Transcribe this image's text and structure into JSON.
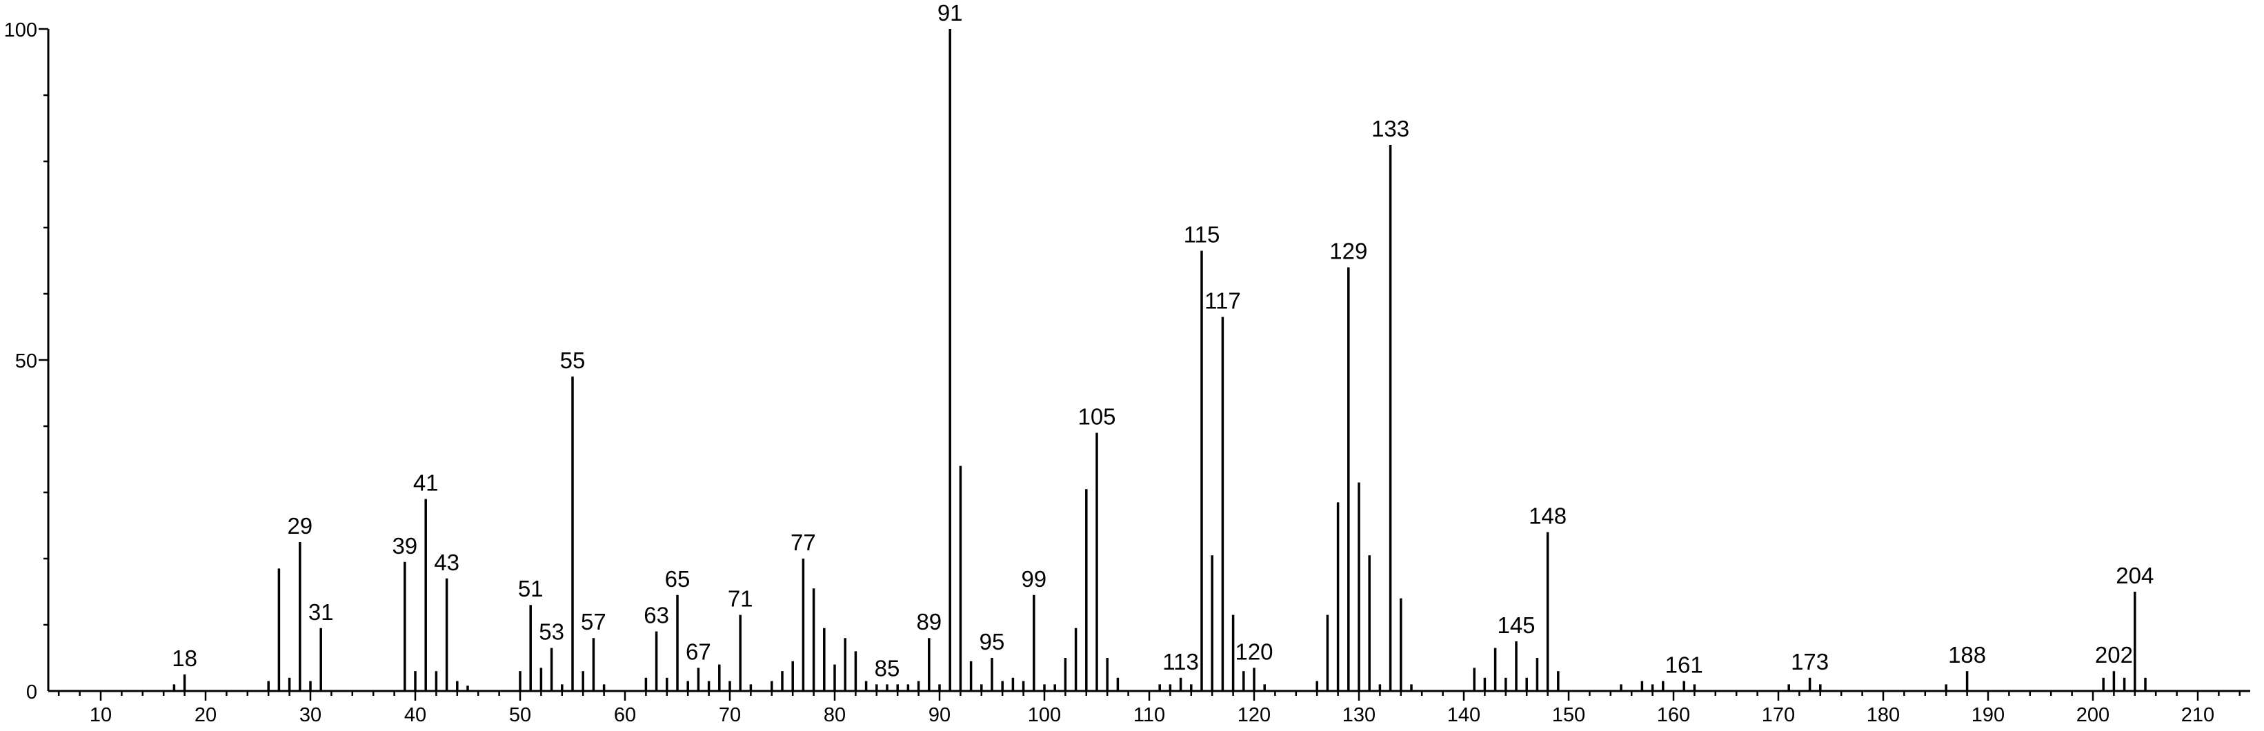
{
  "chart_data": {
    "type": "bar",
    "title": "",
    "xlabel": "",
    "ylabel": "",
    "xlim": [
      5,
      215
    ],
    "ylim": [
      0,
      100
    ],
    "grid": false,
    "x_ticks": [
      10,
      20,
      30,
      40,
      50,
      60,
      70,
      80,
      90,
      100,
      110,
      120,
      130,
      140,
      150,
      160,
      170,
      180,
      190,
      200,
      210
    ],
    "y_ticks": [
      0,
      50,
      100
    ],
    "peaks": [
      {
        "x": 17,
        "y": 1
      },
      {
        "x": 18,
        "y": 2.5,
        "label": "18"
      },
      {
        "x": 26,
        "y": 1.5
      },
      {
        "x": 27,
        "y": 18.5
      },
      {
        "x": 28,
        "y": 2
      },
      {
        "x": 29,
        "y": 22.5,
        "label": "29"
      },
      {
        "x": 30,
        "y": 1.5
      },
      {
        "x": 31,
        "y": 9.5,
        "label": "31"
      },
      {
        "x": 39,
        "y": 19.5,
        "label": "39"
      },
      {
        "x": 40,
        "y": 3
      },
      {
        "x": 41,
        "y": 29,
        "label": "41"
      },
      {
        "x": 42,
        "y": 3
      },
      {
        "x": 43,
        "y": 17,
        "label": "43"
      },
      {
        "x": 44,
        "y": 1.5
      },
      {
        "x": 45,
        "y": 0.8
      },
      {
        "x": 50,
        "y": 3
      },
      {
        "x": 51,
        "y": 13,
        "label": "51"
      },
      {
        "x": 52,
        "y": 3.5
      },
      {
        "x": 53,
        "y": 6.5,
        "label": "53"
      },
      {
        "x": 54,
        "y": 1
      },
      {
        "x": 55,
        "y": 47.5,
        "label": "55"
      },
      {
        "x": 56,
        "y": 3
      },
      {
        "x": 57,
        "y": 8,
        "label": "57"
      },
      {
        "x": 58,
        "y": 1
      },
      {
        "x": 62,
        "y": 2
      },
      {
        "x": 63,
        "y": 9,
        "label": "63"
      },
      {
        "x": 64,
        "y": 2
      },
      {
        "x": 65,
        "y": 14.5,
        "label": "65"
      },
      {
        "x": 66,
        "y": 1.5
      },
      {
        "x": 67,
        "y": 3.5,
        "label": "67"
      },
      {
        "x": 68,
        "y": 1.5
      },
      {
        "x": 69,
        "y": 4
      },
      {
        "x": 70,
        "y": 1.5
      },
      {
        "x": 71,
        "y": 11.5,
        "label": "71"
      },
      {
        "x": 72,
        "y": 1
      },
      {
        "x": 74,
        "y": 1.5
      },
      {
        "x": 75,
        "y": 3
      },
      {
        "x": 76,
        "y": 4.5
      },
      {
        "x": 77,
        "y": 20,
        "label": "77"
      },
      {
        "x": 78,
        "y": 15.5
      },
      {
        "x": 79,
        "y": 9.5
      },
      {
        "x": 80,
        "y": 4
      },
      {
        "x": 81,
        "y": 8
      },
      {
        "x": 82,
        "y": 6
      },
      {
        "x": 83,
        "y": 1.5
      },
      {
        "x": 84,
        "y": 1
      },
      {
        "x": 85,
        "y": 1,
        "label": "85"
      },
      {
        "x": 86,
        "y": 1
      },
      {
        "x": 87,
        "y": 1
      },
      {
        "x": 88,
        "y": 1.5
      },
      {
        "x": 89,
        "y": 8,
        "label": "89"
      },
      {
        "x": 90,
        "y": 1
      },
      {
        "x": 91,
        "y": 100,
        "label": "91"
      },
      {
        "x": 92,
        "y": 34
      },
      {
        "x": 93,
        "y": 4.5
      },
      {
        "x": 94,
        "y": 1
      },
      {
        "x": 95,
        "y": 5,
        "label": "95"
      },
      {
        "x": 96,
        "y": 1.5
      },
      {
        "x": 97,
        "y": 2
      },
      {
        "x": 98,
        "y": 1.5
      },
      {
        "x": 99,
        "y": 14.5,
        "label": "99"
      },
      {
        "x": 100,
        "y": 1
      },
      {
        "x": 101,
        "y": 1
      },
      {
        "x": 102,
        "y": 5
      },
      {
        "x": 103,
        "y": 9.5
      },
      {
        "x": 104,
        "y": 30.5
      },
      {
        "x": 105,
        "y": 39,
        "label": "105"
      },
      {
        "x": 106,
        "y": 5
      },
      {
        "x": 107,
        "y": 2
      },
      {
        "x": 111,
        "y": 1
      },
      {
        "x": 112,
        "y": 1
      },
      {
        "x": 113,
        "y": 2,
        "label": "113"
      },
      {
        "x": 114,
        "y": 1
      },
      {
        "x": 115,
        "y": 66.5,
        "label": "115"
      },
      {
        "x": 116,
        "y": 20.5
      },
      {
        "x": 117,
        "y": 56.5,
        "label": "117"
      },
      {
        "x": 118,
        "y": 11.5
      },
      {
        "x": 119,
        "y": 3
      },
      {
        "x": 120,
        "y": 3.5,
        "label": "120"
      },
      {
        "x": 121,
        "y": 1
      },
      {
        "x": 126,
        "y": 1.5
      },
      {
        "x": 127,
        "y": 11.5
      },
      {
        "x": 128,
        "y": 28.5
      },
      {
        "x": 129,
        "y": 64,
        "label": "129"
      },
      {
        "x": 130,
        "y": 31.5
      },
      {
        "x": 131,
        "y": 20.5
      },
      {
        "x": 132,
        "y": 1
      },
      {
        "x": 133,
        "y": 82.5,
        "label": "133"
      },
      {
        "x": 134,
        "y": 14
      },
      {
        "x": 135,
        "y": 1
      },
      {
        "x": 141,
        "y": 3.5
      },
      {
        "x": 142,
        "y": 2
      },
      {
        "x": 143,
        "y": 6.5
      },
      {
        "x": 144,
        "y": 2
      },
      {
        "x": 145,
        "y": 7.5,
        "label": "145"
      },
      {
        "x": 146,
        "y": 2
      },
      {
        "x": 147,
        "y": 5
      },
      {
        "x": 148,
        "y": 24,
        "label": "148"
      },
      {
        "x": 149,
        "y": 3
      },
      {
        "x": 155,
        "y": 1
      },
      {
        "x": 157,
        "y": 1.5
      },
      {
        "x": 158,
        "y": 1
      },
      {
        "x": 159,
        "y": 1.5
      },
      {
        "x": 161,
        "y": 1.5,
        "label": "161"
      },
      {
        "x": 162,
        "y": 1
      },
      {
        "x": 171,
        "y": 1
      },
      {
        "x": 173,
        "y": 2,
        "label": "173"
      },
      {
        "x": 174,
        "y": 1
      },
      {
        "x": 186,
        "y": 1
      },
      {
        "x": 188,
        "y": 3,
        "label": "188"
      },
      {
        "x": 201,
        "y": 2
      },
      {
        "x": 202,
        "y": 3,
        "label": "202"
      },
      {
        "x": 203,
        "y": 2
      },
      {
        "x": 204,
        "y": 15,
        "label": "204"
      },
      {
        "x": 205,
        "y": 2
      }
    ]
  }
}
